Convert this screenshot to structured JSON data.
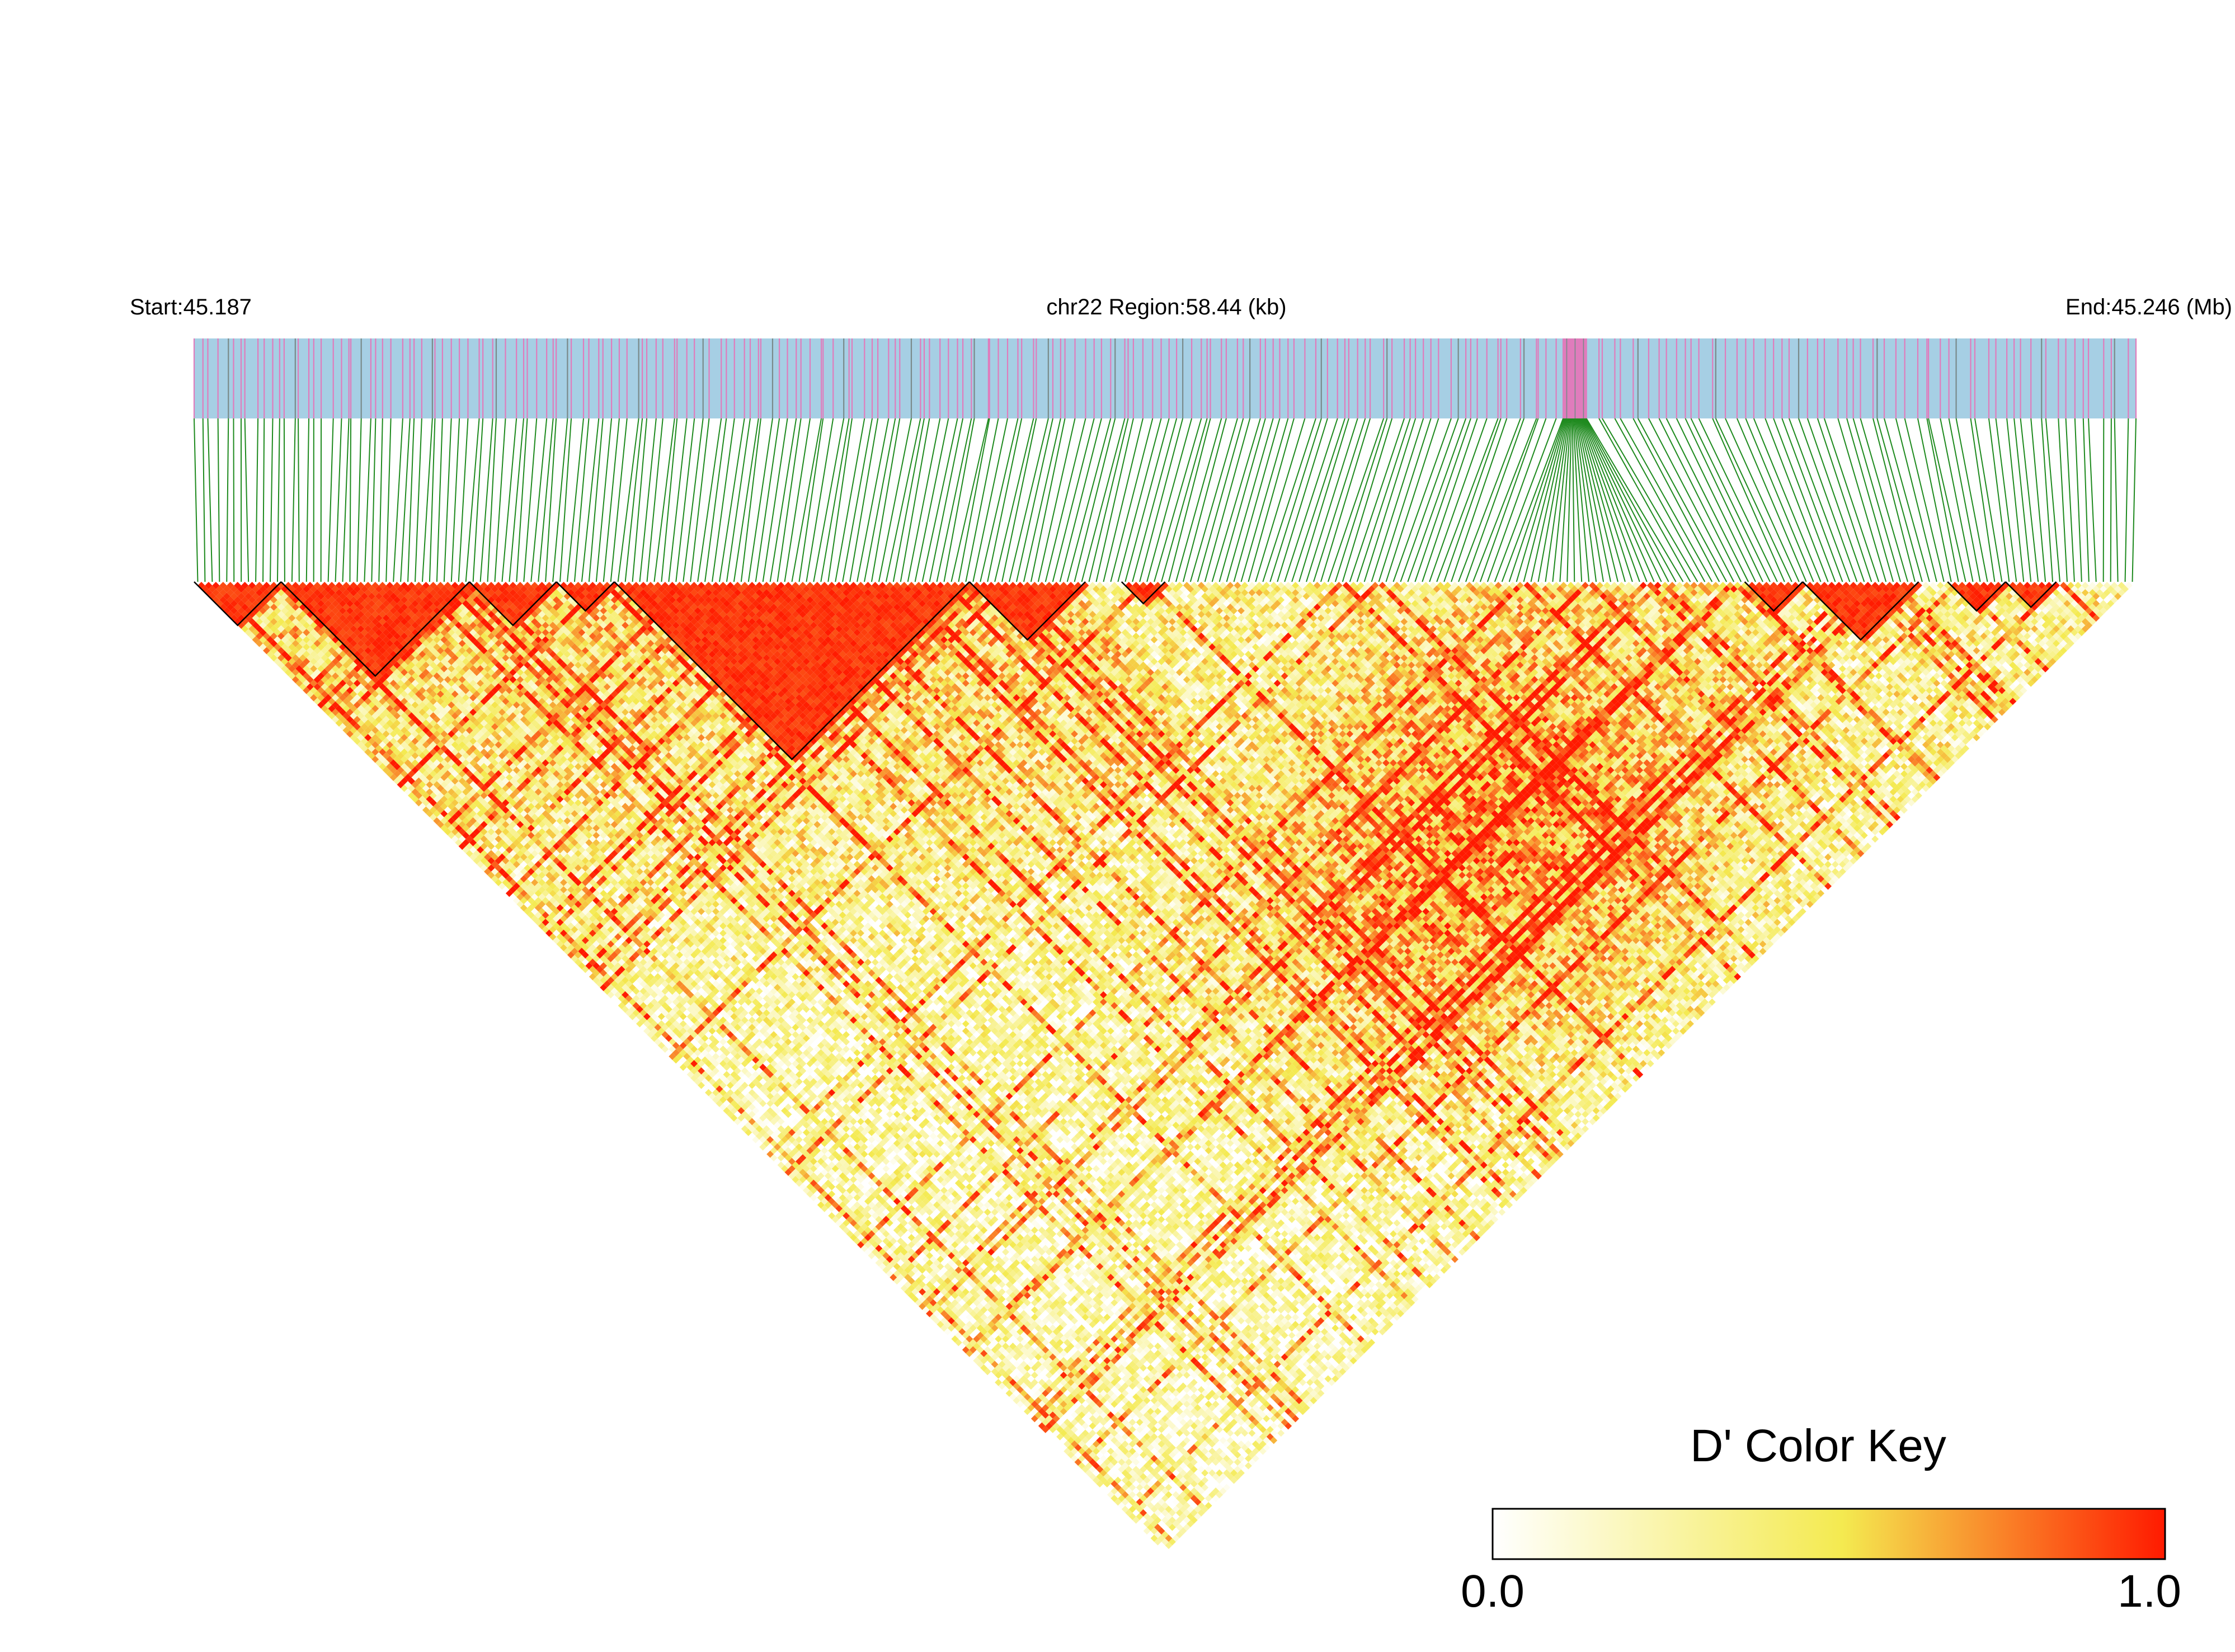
{
  "chart_data": {
    "type": "heatmap",
    "subtype": "linkage-disequilibrium-triangle",
    "header": {
      "start_label": "Start:45.187",
      "region_label": "chr22 Region:58.44 (kb)",
      "end_label": "End:45.246 (Mb)"
    },
    "region": {
      "chromosome": "chr22",
      "start_mb": 45.187,
      "end_mb": 45.246,
      "length_kb": 58.44
    },
    "measure": "D'",
    "n_markers": 268,
    "color_key": {
      "title": "D' Color Key",
      "min_label": "0.0",
      "max_label": "1.0",
      "min": 0.0,
      "max": 1.0,
      "stops": [
        "#ffffff",
        "#f4ea50",
        "#ff1a00"
      ]
    },
    "colors": {
      "track_background": "#a6cfe4",
      "variant_tick": "#e07cbc",
      "connector_line": "#1e8a1e",
      "high_ld": "#ff1a00",
      "block_outline": "#000000"
    },
    "high_ld_blocks": [
      {
        "from_marker": 0,
        "to_marker": 12
      },
      {
        "from_marker": 12,
        "to_marker": 38
      },
      {
        "from_marker": 38,
        "to_marker": 50
      },
      {
        "from_marker": 50,
        "to_marker": 58
      },
      {
        "from_marker": 58,
        "to_marker": 107
      },
      {
        "from_marker": 107,
        "to_marker": 123
      },
      {
        "from_marker": 128,
        "to_marker": 134
      },
      {
        "from_marker": 214,
        "to_marker": 222
      },
      {
        "from_marker": 222,
        "to_marker": 238
      },
      {
        "from_marker": 242,
        "to_marker": 250
      },
      {
        "from_marker": 250,
        "to_marker": 257
      }
    ]
  }
}
